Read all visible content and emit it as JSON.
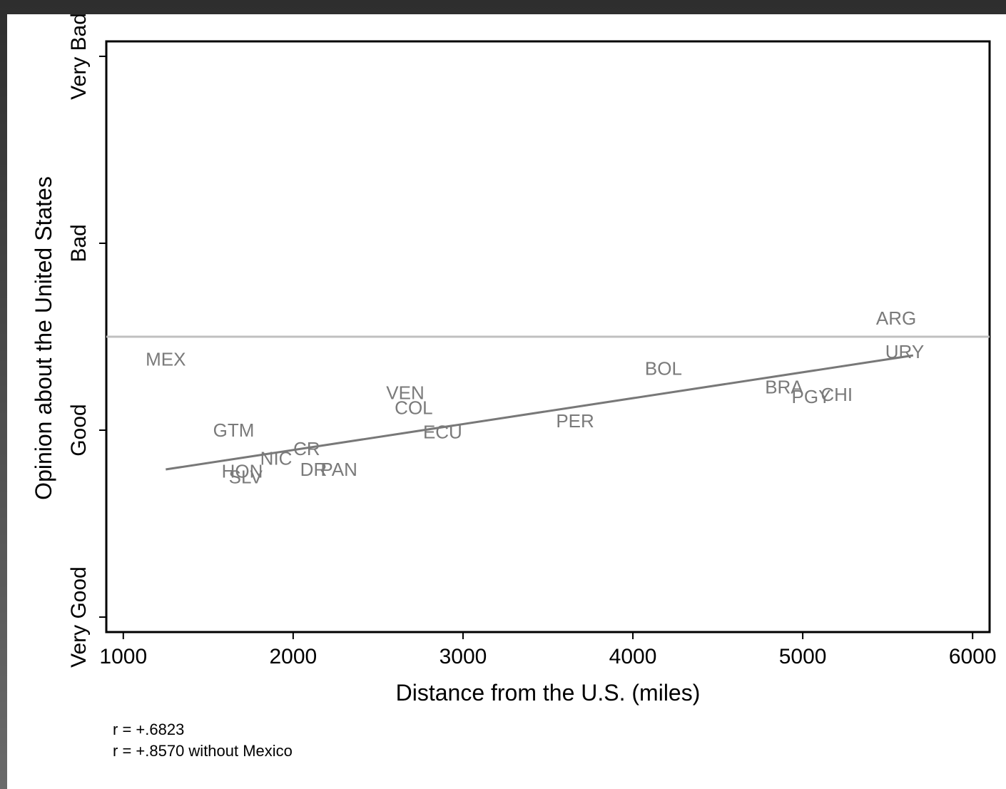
{
  "chart_data": {
    "type": "scatter",
    "title": "",
    "xlabel": "Distance from the U.S. (miles)",
    "ylabel": "Opinion about the United States",
    "xlim": [
      900,
      6100
    ],
    "ylim": [
      0.92,
      4.08
    ],
    "x_ticks": [
      1000,
      2000,
      3000,
      4000,
      5000,
      6000
    ],
    "y_ticks": [
      {
        "value": 1,
        "label": "Very Good"
      },
      {
        "value": 2,
        "label": "Good"
      },
      {
        "value": 3,
        "label": "Bad"
      },
      {
        "value": 4,
        "label": "Very Bad"
      }
    ],
    "points": [
      {
        "label": "MEX",
        "x": 1250,
        "y": 2.38
      },
      {
        "label": "GTM",
        "x": 1650,
        "y": 2.0
      },
      {
        "label": "HON",
        "x": 1700,
        "y": 1.78
      },
      {
        "label": "SLV",
        "x": 1720,
        "y": 1.75
      },
      {
        "label": "NIC",
        "x": 1900,
        "y": 1.85
      },
      {
        "label": "CR",
        "x": 2080,
        "y": 1.9
      },
      {
        "label": "DR",
        "x": 2120,
        "y": 1.79
      },
      {
        "label": "PAN",
        "x": 2270,
        "y": 1.79
      },
      {
        "label": "VEN",
        "x": 2660,
        "y": 2.2
      },
      {
        "label": "COL",
        "x": 2710,
        "y": 2.12
      },
      {
        "label": "ECU",
        "x": 2880,
        "y": 1.99
      },
      {
        "label": "PER",
        "x": 3660,
        "y": 2.05
      },
      {
        "label": "BOL",
        "x": 4180,
        "y": 2.33
      },
      {
        "label": "BRA",
        "x": 4890,
        "y": 2.23
      },
      {
        "label": "PGY",
        "x": 5050,
        "y": 2.18
      },
      {
        "label": "CHI",
        "x": 5200,
        "y": 2.19
      },
      {
        "label": "ARG",
        "x": 5550,
        "y": 2.6
      },
      {
        "label": "URY",
        "x": 5600,
        "y": 2.42
      }
    ],
    "fit_line": {
      "x": [
        1250,
        5650
      ],
      "y": [
        1.79,
        2.4
      ]
    },
    "reference_line_y": 2.5,
    "grid": false,
    "annotations": [
      "r = +.6823",
      "r = +.8570 without Mexico"
    ]
  },
  "colors": {
    "point_label": "#7a7a7a",
    "fit_line": "#787878",
    "reference_line": "#c0c0c0",
    "axes": "#000000"
  }
}
